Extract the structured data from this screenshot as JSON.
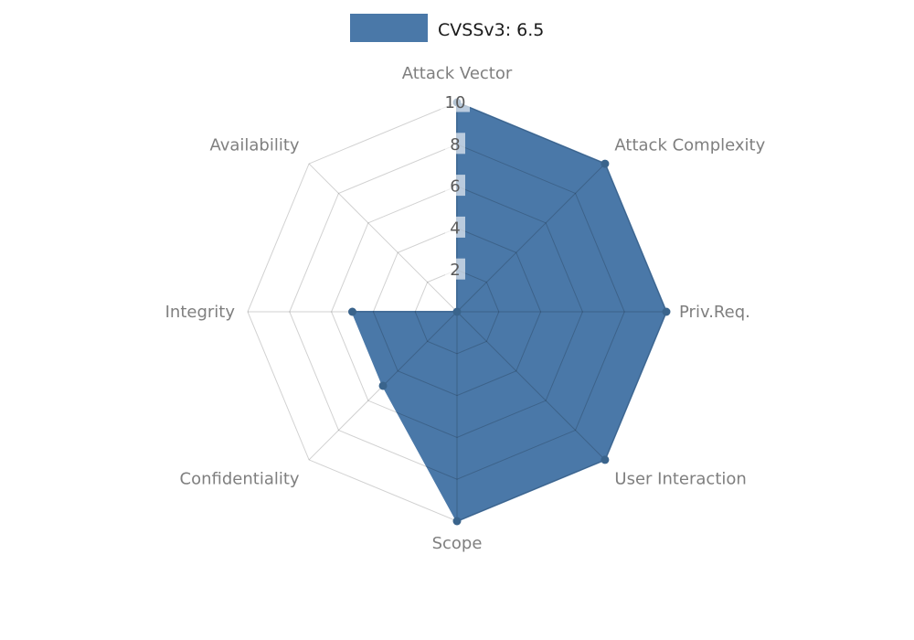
{
  "page": {
    "background": "#ffffff"
  },
  "chart_data": {
    "type": "radar",
    "title": "",
    "categories": [
      "Attack Vector",
      "Attack Complexity",
      "Priv.Req.",
      "User Interaction",
      "Scope",
      "Confidentiality",
      "Integrity",
      "Availability"
    ],
    "series": [
      {
        "name": "CVSSv3: 6.5",
        "color": "#4a78a8",
        "marker_color": "#3a648c",
        "values": [
          10,
          10,
          10,
          10,
          10,
          5,
          5,
          0
        ]
      }
    ],
    "radial_ticks": [
      2,
      4,
      6,
      8,
      10
    ],
    "rlim": [
      0,
      10
    ],
    "start_angle_deg": -90,
    "direction": "clockwise",
    "grid": true,
    "legend_position": "top-center",
    "axis_label_color": "#7f7f7f",
    "tick_label_color": "#5a5a5a",
    "grid_color": "rgba(0,0,0,0.18)",
    "tick_label_bg": "rgba(255,255,255,0.62)",
    "legend_text_color": "#1a1a1a"
  }
}
